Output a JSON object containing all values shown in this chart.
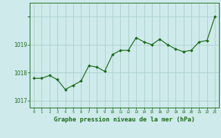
{
  "x": [
    0,
    1,
    2,
    3,
    4,
    5,
    6,
    7,
    8,
    9,
    10,
    11,
    12,
    13,
    14,
    15,
    16,
    17,
    18,
    19,
    20,
    21,
    22,
    23
  ],
  "y": [
    1017.8,
    1017.8,
    1017.9,
    1017.75,
    1017.4,
    1017.55,
    1017.7,
    1018.25,
    1018.2,
    1018.05,
    1018.65,
    1018.8,
    1018.8,
    1019.25,
    1019.1,
    1019.0,
    1019.2,
    1019.0,
    1018.85,
    1018.75,
    1018.8,
    1019.1,
    1019.15,
    1020.0
  ],
  "line_color": "#1a6b1a",
  "marker_color": "#1a6b1a",
  "bg_color": "#ceeaea",
  "grid_color": "#aacece",
  "xlabel": "Graphe pression niveau de la mer (hPa)",
  "ylim": [
    1016.75,
    1020.5
  ],
  "yticks": [
    1017,
    1018,
    1019
  ],
  "xlabel_color": "#1a6b1a",
  "tick_color": "#1a6b1a"
}
